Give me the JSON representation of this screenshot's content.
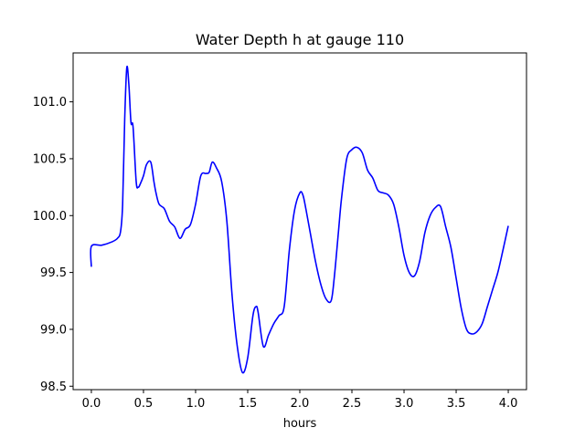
{
  "chart_data": {
    "type": "line",
    "title": "Water Depth h at gauge 110",
    "xlabel": "hours",
    "ylabel": "",
    "xlim": [
      -0.175,
      4.175
    ],
    "ylim": [
      98.47,
      101.43
    ],
    "xticks": [
      0.0,
      0.5,
      1.0,
      1.5,
      2.0,
      2.5,
      3.0,
      3.5,
      4.0
    ],
    "xtick_labels": [
      "0.0",
      "0.5",
      "1.0",
      "1.5",
      "2.0",
      "2.5",
      "3.0",
      "3.5",
      "4.0"
    ],
    "yticks": [
      98.5,
      99.0,
      99.5,
      100.0,
      100.5,
      101.0
    ],
    "ytick_labels": [
      "98.5",
      "99.0",
      "99.5",
      "100.0",
      "100.5",
      "101.0"
    ],
    "grid": false,
    "series": [
      {
        "color": "#0000ff",
        "x": [
          0.0,
          0.0,
          0.1,
          0.2,
          0.25,
          0.28,
          0.3,
          0.32,
          0.34,
          0.36,
          0.38,
          0.4,
          0.43,
          0.45,
          0.47,
          0.5,
          0.53,
          0.57,
          0.6,
          0.62,
          0.65,
          0.7,
          0.75,
          0.8,
          0.85,
          0.9,
          0.95,
          1.0,
          1.05,
          1.1,
          1.13,
          1.16,
          1.2,
          1.25,
          1.3,
          1.35,
          1.4,
          1.45,
          1.5,
          1.55,
          1.58,
          1.6,
          1.65,
          1.7,
          1.75,
          1.8,
          1.85,
          1.9,
          1.95,
          2.0,
          2.03,
          2.06,
          2.1,
          2.15,
          2.2,
          2.25,
          2.3,
          2.33,
          2.37,
          2.4,
          2.45,
          2.5,
          2.55,
          2.6,
          2.65,
          2.7,
          2.75,
          2.8,
          2.85,
          2.9,
          2.95,
          3.0,
          3.05,
          3.1,
          3.15,
          3.2,
          3.25,
          3.3,
          3.35,
          3.4,
          3.45,
          3.5,
          3.55,
          3.6,
          3.65,
          3.7,
          3.75,
          3.8,
          3.85,
          3.9,
          3.95,
          4.0
        ],
        "values": [
          99.55,
          99.73,
          99.74,
          99.77,
          99.8,
          99.86,
          100.1,
          100.85,
          101.3,
          101.15,
          100.82,
          100.78,
          100.3,
          100.25,
          100.28,
          100.35,
          100.45,
          100.47,
          100.3,
          100.2,
          100.1,
          100.06,
          99.95,
          99.9,
          99.8,
          99.88,
          99.92,
          100.1,
          100.35,
          100.37,
          100.38,
          100.47,
          100.42,
          100.3,
          99.95,
          99.3,
          98.85,
          98.62,
          98.75,
          99.12,
          99.2,
          99.15,
          98.85,
          98.95,
          99.05,
          99.12,
          99.2,
          99.7,
          100.05,
          100.2,
          100.18,
          100.05,
          99.85,
          99.6,
          99.4,
          99.27,
          99.25,
          99.45,
          99.85,
          100.15,
          100.5,
          100.58,
          100.6,
          100.55,
          100.4,
          100.33,
          100.22,
          100.2,
          100.18,
          100.1,
          99.9,
          99.65,
          99.5,
          99.47,
          99.6,
          99.85,
          100.0,
          100.07,
          100.08,
          99.9,
          99.72,
          99.45,
          99.18,
          99.0,
          98.96,
          98.98,
          99.05,
          99.2,
          99.35,
          99.5,
          99.7,
          99.91
        ]
      }
    ]
  }
}
